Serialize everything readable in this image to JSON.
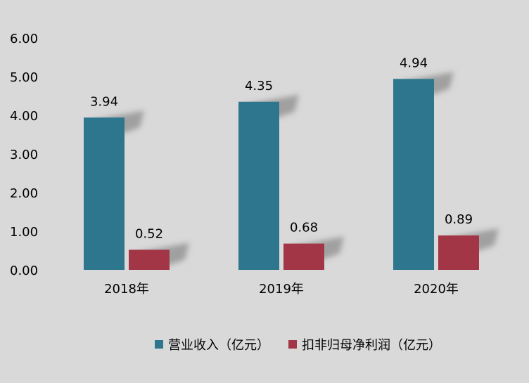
{
  "chart_data": {
    "type": "bar",
    "categories": [
      "2018年",
      "2019年",
      "2020年"
    ],
    "series": [
      {
        "name": "营业收入（亿元）",
        "values": [
          3.94,
          4.35,
          4.94
        ],
        "color": "#2e768d"
      },
      {
        "name": "扣非归母净利润（亿元）",
        "values": [
          0.52,
          0.68,
          0.89
        ],
        "color": "#a33646"
      }
    ],
    "ylim": [
      0,
      6
    ],
    "yticks": [
      "0.00",
      "1.00",
      "2.00",
      "3.00",
      "4.00",
      "5.00",
      "6.00"
    ],
    "title": "",
    "xlabel": "",
    "ylabel": "",
    "grid": false,
    "legend_position": "bottom-right"
  }
}
